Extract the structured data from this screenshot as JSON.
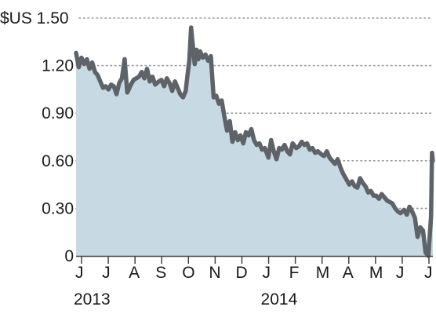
{
  "chart_data": {
    "type": "area",
    "title": "",
    "xlabel": "",
    "ylabel": "",
    "y_unit_prefix": "$US",
    "ylim": [
      0,
      1.5
    ],
    "y_ticks": [
      0,
      0.3,
      0.6,
      0.9,
      1.2,
      1.5
    ],
    "y_tick_labels": [
      "0",
      "0.30",
      "0.60",
      "0.90",
      "1.20",
      "1.50"
    ],
    "grid": "horizontal dotted",
    "x_tick_labels": [
      "J",
      "J",
      "A",
      "S",
      "O",
      "N",
      "D",
      "J",
      "F",
      "M",
      "A",
      "M",
      "J",
      "J"
    ],
    "x_tick_dates": [
      "2013-06",
      "2013-07",
      "2013-08",
      "2013-09",
      "2013-10",
      "2013-11",
      "2013-12",
      "2014-01",
      "2014-02",
      "2014-03",
      "2014-04",
      "2014-05",
      "2014-06",
      "2014-07"
    ],
    "year_labels": [
      {
        "text": "2013",
        "at": "2013-06"
      },
      {
        "text": "2014",
        "at": "2014-01"
      }
    ],
    "colors": {
      "line": "#5d6369",
      "fill": "#c7d9e2",
      "grid": "#9a9a9a",
      "axis": "#444444",
      "text": "#1a1a1a"
    },
    "series": [
      {
        "x": [
          "2013-06-01",
          "2013-06-04",
          "2013-06-07",
          "2013-06-10",
          "2013-06-13",
          "2013-06-16",
          "2013-06-19",
          "2013-06-22",
          "2013-06-25",
          "2013-06-28",
          "2013-07-01",
          "2013-07-04",
          "2013-07-07",
          "2013-07-10",
          "2013-07-13",
          "2013-07-16",
          "2013-07-19",
          "2013-07-22",
          "2013-07-25",
          "2013-07-28",
          "2013-08-01",
          "2013-08-04",
          "2013-08-07",
          "2013-08-10",
          "2013-08-13",
          "2013-08-16",
          "2013-08-19",
          "2013-08-22",
          "2013-08-25",
          "2013-08-28",
          "2013-09-01",
          "2013-09-04",
          "2013-09-07",
          "2013-09-10",
          "2013-09-13",
          "2013-09-16",
          "2013-09-19",
          "2013-09-22",
          "2013-09-25",
          "2013-09-28",
          "2013-10-01",
          "2013-10-03",
          "2013-10-05",
          "2013-10-07",
          "2013-10-09",
          "2013-10-11",
          "2013-10-13",
          "2013-10-15",
          "2013-10-17",
          "2013-10-20",
          "2013-10-23",
          "2013-10-26",
          "2013-10-29",
          "2013-11-01",
          "2013-11-04",
          "2013-11-07",
          "2013-11-10",
          "2013-11-13",
          "2013-11-16",
          "2013-11-19",
          "2013-11-22",
          "2013-11-25",
          "2013-11-28",
          "2013-12-01",
          "2013-12-04",
          "2013-12-07",
          "2013-12-10",
          "2013-12-13",
          "2013-12-16",
          "2013-12-19",
          "2013-12-22",
          "2013-12-25",
          "2013-12-28",
          "2014-01-01",
          "2014-01-04",
          "2014-01-07",
          "2014-01-10",
          "2014-01-13",
          "2014-01-16",
          "2014-01-19",
          "2014-01-22",
          "2014-01-25",
          "2014-01-28",
          "2014-02-01",
          "2014-02-04",
          "2014-02-07",
          "2014-02-10",
          "2014-02-13",
          "2014-02-16",
          "2014-02-19",
          "2014-02-22",
          "2014-02-25",
          "2014-03-01",
          "2014-03-04",
          "2014-03-07",
          "2014-03-10",
          "2014-03-13",
          "2014-03-16",
          "2014-03-19",
          "2014-03-22",
          "2014-03-25",
          "2014-03-28",
          "2014-04-01",
          "2014-04-04",
          "2014-04-07",
          "2014-04-10",
          "2014-04-13",
          "2014-04-16",
          "2014-04-19",
          "2014-04-22",
          "2014-04-25",
          "2014-04-28",
          "2014-05-01",
          "2014-05-04",
          "2014-05-07",
          "2014-05-10",
          "2014-05-13",
          "2014-05-16",
          "2014-05-19",
          "2014-05-22",
          "2014-05-25",
          "2014-05-28",
          "2014-06-01",
          "2014-06-04",
          "2014-06-07",
          "2014-06-10",
          "2014-06-13",
          "2014-06-16",
          "2014-06-19",
          "2014-06-22",
          "2014-06-25",
          "2014-06-28",
          "2014-07-01",
          "2014-07-02",
          "2014-07-03"
        ],
        "values": [
          1.28,
          1.19,
          1.25,
          1.21,
          1.24,
          1.18,
          1.22,
          1.16,
          1.14,
          1.1,
          1.06,
          1.07,
          1.05,
          1.08,
          1.07,
          1.02,
          1.09,
          1.12,
          1.24,
          1.03,
          1.08,
          1.11,
          1.12,
          1.13,
          1.16,
          1.12,
          1.18,
          1.1,
          1.13,
          1.08,
          1.1,
          1.11,
          1.07,
          1.12,
          1.09,
          1.04,
          1.1,
          1.06,
          1.02,
          1.0,
          1.04,
          1.14,
          1.23,
          1.44,
          1.32,
          1.21,
          1.3,
          1.24,
          1.29,
          1.25,
          1.27,
          1.23,
          1.26,
          1.0,
          1.01,
          0.96,
          0.98,
          0.88,
          0.79,
          0.85,
          0.72,
          0.78,
          0.73,
          0.76,
          0.71,
          0.78,
          0.76,
          0.8,
          0.73,
          0.7,
          0.71,
          0.67,
          0.68,
          0.62,
          0.73,
          0.66,
          0.61,
          0.68,
          0.67,
          0.7,
          0.66,
          0.64,
          0.71,
          0.68,
          0.69,
          0.72,
          0.7,
          0.71,
          0.67,
          0.68,
          0.65,
          0.66,
          0.64,
          0.63,
          0.66,
          0.62,
          0.6,
          0.58,
          0.61,
          0.56,
          0.52,
          0.49,
          0.45,
          0.47,
          0.44,
          0.43,
          0.49,
          0.46,
          0.44,
          0.4,
          0.41,
          0.38,
          0.38,
          0.36,
          0.39,
          0.37,
          0.35,
          0.34,
          0.33,
          0.3,
          0.28,
          0.27,
          0.29,
          0.26,
          0.31,
          0.28,
          0.24,
          0.12,
          0.18,
          0.16,
          0.02,
          0.0,
          0.25,
          0.65,
          0.6
        ]
      }
    ]
  }
}
